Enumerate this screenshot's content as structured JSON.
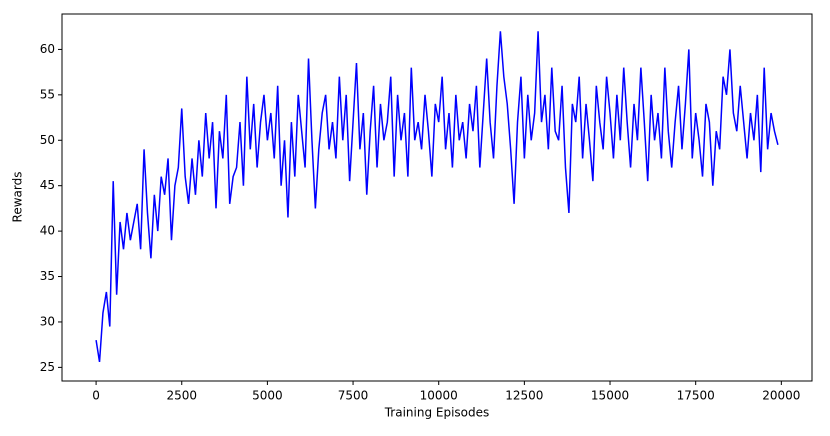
{
  "chart_data": {
    "type": "line",
    "x_label": "Training Episodes",
    "y_label": "Rewards",
    "xlim": [
      -995,
      20895
    ],
    "ylim": [
      23.5,
      63.9
    ],
    "xticks": [
      0,
      2500,
      5000,
      7500,
      10000,
      12500,
      15000,
      17500,
      20000
    ],
    "yticks": [
      25,
      30,
      35,
      40,
      45,
      50,
      55,
      60
    ],
    "x": [
      0,
      100,
      200,
      300,
      400,
      500,
      600,
      700,
      800,
      900,
      1000,
      1100,
      1200,
      1300,
      1400,
      1500,
      1600,
      1700,
      1800,
      1900,
      2000,
      2100,
      2200,
      2300,
      2400,
      2500,
      2600,
      2700,
      2800,
      2900,
      3000,
      3100,
      3200,
      3300,
      3400,
      3500,
      3600,
      3700,
      3800,
      3900,
      4000,
      4100,
      4200,
      4300,
      4400,
      4500,
      4600,
      4700,
      4800,
      4900,
      5000,
      5100,
      5200,
      5300,
      5400,
      5500,
      5600,
      5700,
      5800,
      5900,
      6000,
      6100,
      6200,
      6300,
      6400,
      6500,
      6600,
      6700,
      6800,
      6900,
      7000,
      7100,
      7200,
      7300,
      7400,
      7500,
      7600,
      7700,
      7800,
      7900,
      8000,
      8100,
      8200,
      8300,
      8400,
      8500,
      8600,
      8700,
      8800,
      8900,
      9000,
      9100,
      9200,
      9300,
      9400,
      9500,
      9600,
      9700,
      9800,
      9900,
      10000,
      10100,
      10200,
      10300,
      10400,
      10500,
      10600,
      10700,
      10800,
      10900,
      11000,
      11100,
      11200,
      11300,
      11400,
      11500,
      11600,
      11700,
      11800,
      11900,
      12000,
      12100,
      12200,
      12300,
      12400,
      12500,
      12600,
      12700,
      12800,
      12900,
      13000,
      13100,
      13200,
      13300,
      13400,
      13500,
      13600,
      13700,
      13800,
      13900,
      14000,
      14100,
      14200,
      14300,
      14400,
      14500,
      14600,
      14700,
      14800,
      14900,
      15000,
      15100,
      15200,
      15300,
      15400,
      15500,
      15600,
      15700,
      15800,
      15900,
      16000,
      16100,
      16200,
      16300,
      16400,
      16500,
      16600,
      16700,
      16800,
      16900,
      17000,
      17100,
      17200,
      17300,
      17400,
      17500,
      17600,
      17700,
      17800,
      17900,
      18000,
      18100,
      18200,
      18300,
      18400,
      18500,
      18600,
      18700,
      18800,
      18900,
      19000,
      19100,
      19200,
      19300,
      19400,
      19500,
      19600,
      19700,
      19800,
      19900
    ],
    "series": [
      {
        "color": "#0000ff",
        "values": [
          28,
          25.6,
          31,
          33.3,
          29.5,
          45.5,
          33,
          41,
          38,
          42,
          39,
          41,
          43,
          38,
          49,
          42,
          37,
          44,
          40,
          46,
          44,
          48,
          39,
          45,
          47,
          53.5,
          46,
          43,
          48,
          44,
          50,
          46,
          53,
          48,
          52,
          42.5,
          51,
          48,
          55,
          43,
          46,
          47,
          52,
          45,
          57,
          49,
          54,
          47,
          52,
          55,
          50,
          53,
          48,
          56,
          45,
          50,
          41.5,
          52,
          46,
          55,
          51,
          47,
          59,
          50,
          42.5,
          49,
          53,
          55,
          49,
          52,
          48,
          57,
          50,
          55,
          45.5,
          52,
          58.5,
          49,
          53,
          44,
          51,
          56,
          47,
          54,
          50,
          52,
          57,
          46,
          55,
          50,
          53,
          46,
          58,
          50,
          52,
          49,
          55,
          51,
          46,
          54,
          52,
          57,
          49,
          53,
          47,
          55,
          50,
          52,
          48,
          54,
          51,
          56,
          47,
          53,
          59,
          52,
          48,
          56,
          62,
          57,
          54,
          49,
          43,
          52,
          57,
          48,
          55,
          50,
          53,
          62,
          52,
          55,
          49,
          58,
          51,
          50,
          56,
          47,
          42,
          54,
          52,
          57,
          48,
          54,
          50,
          45.5,
          56,
          52,
          49,
          57,
          53,
          48,
          55,
          50,
          58,
          52,
          47,
          54,
          50,
          58,
          52,
          45.5,
          55,
          50,
          53,
          48,
          58,
          51,
          47,
          52,
          56,
          49,
          54,
          60,
          48,
          53,
          50,
          46,
          54,
          52,
          45,
          51,
          49,
          57,
          55,
          60,
          53,
          51,
          56,
          52,
          48,
          53,
          50,
          55,
          46.5,
          58,
          49,
          53,
          51,
          49.5
        ]
      }
    ]
  }
}
